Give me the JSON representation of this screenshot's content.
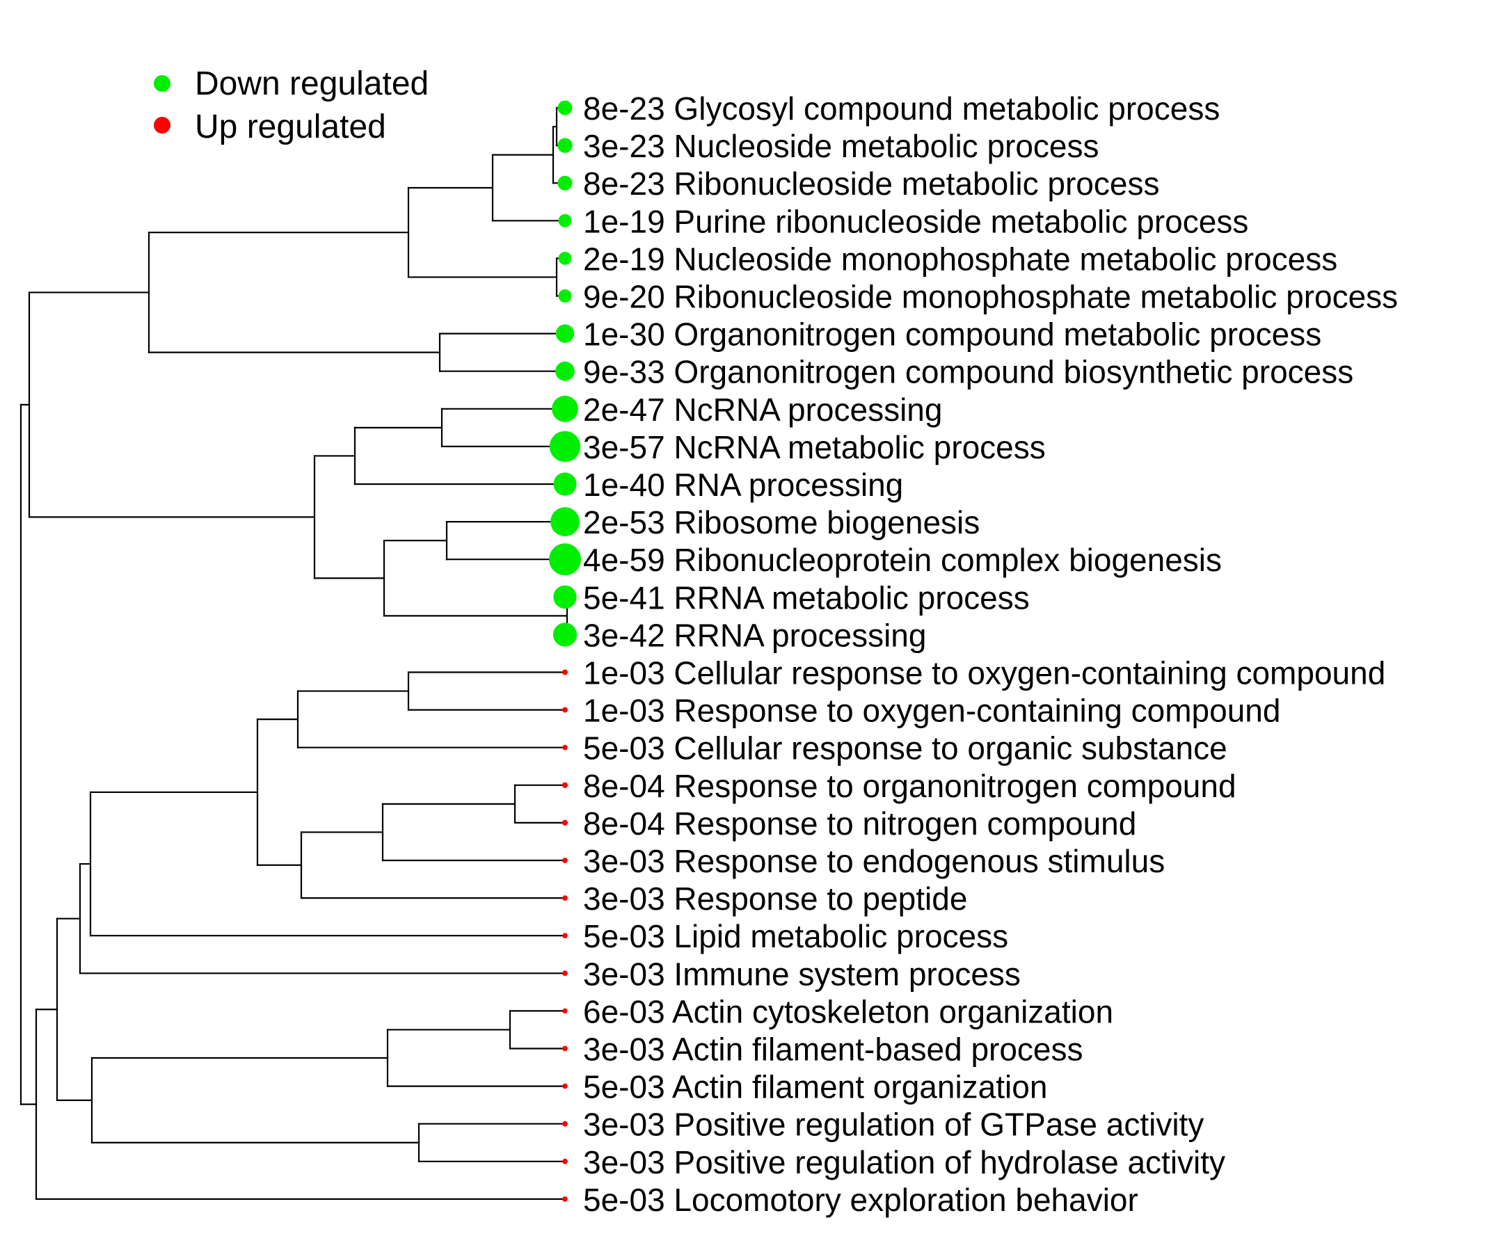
{
  "legend": {
    "entries": [
      {
        "label": "Down regulated",
        "color": "#00ee00"
      },
      {
        "label": "Up regulated",
        "color": "#ff0000"
      }
    ]
  },
  "line_color": "#000000",
  "leaves": [
    {
      "pvalue": "8e-23",
      "term": "Glycosyl compound metabolic process",
      "direction": "down",
      "neglog10p": 22.1
    },
    {
      "pvalue": "3e-23",
      "term": "Nucleoside metabolic process",
      "direction": "down",
      "neglog10p": 22.5
    },
    {
      "pvalue": "8e-23",
      "term": "Ribonucleoside metabolic process",
      "direction": "down",
      "neglog10p": 22.1
    },
    {
      "pvalue": "1e-19",
      "term": "Purine ribonucleoside metabolic process",
      "direction": "down",
      "neglog10p": 19.0
    },
    {
      "pvalue": "2e-19",
      "term": "Nucleoside monophosphate metabolic process",
      "direction": "down",
      "neglog10p": 18.7
    },
    {
      "pvalue": "9e-20",
      "term": "Ribonucleoside monophosphate metabolic process",
      "direction": "down",
      "neglog10p": 19.0
    },
    {
      "pvalue": "1e-30",
      "term": "Organonitrogen compound metabolic process",
      "direction": "down",
      "neglog10p": 30.0
    },
    {
      "pvalue": "9e-33",
      "term": "Organonitrogen compound biosynthetic process",
      "direction": "down",
      "neglog10p": 32.0
    },
    {
      "pvalue": "2e-47",
      "term": "NcRNA processing",
      "direction": "down",
      "neglog10p": 46.7
    },
    {
      "pvalue": "3e-57",
      "term": "NcRNA metabolic process",
      "direction": "down",
      "neglog10p": 56.5
    },
    {
      "pvalue": "1e-40",
      "term": "RNA processing",
      "direction": "down",
      "neglog10p": 40.0
    },
    {
      "pvalue": "2e-53",
      "term": "Ribosome biogenesis",
      "direction": "down",
      "neglog10p": 52.7
    },
    {
      "pvalue": "4e-59",
      "term": "Ribonucleoprotein complex biogenesis",
      "direction": "down",
      "neglog10p": 58.4
    },
    {
      "pvalue": "5e-41",
      "term": "RRNA metabolic process",
      "direction": "down",
      "neglog10p": 40.3
    },
    {
      "pvalue": "3e-42",
      "term": "RRNA processing",
      "direction": "down",
      "neglog10p": 41.5
    },
    {
      "pvalue": "1e-03",
      "term": "Cellular response to oxygen-containing compound",
      "direction": "up",
      "neglog10p": 3.0
    },
    {
      "pvalue": "1e-03",
      "term": "Response to oxygen-containing compound",
      "direction": "up",
      "neglog10p": 3.0
    },
    {
      "pvalue": "5e-03",
      "term": "Cellular response to organic substance",
      "direction": "up",
      "neglog10p": 2.3
    },
    {
      "pvalue": "8e-04",
      "term": "Response to organonitrogen compound",
      "direction": "up",
      "neglog10p": 3.1
    },
    {
      "pvalue": "8e-04",
      "term": "Response to nitrogen compound",
      "direction": "up",
      "neglog10p": 3.1
    },
    {
      "pvalue": "3e-03",
      "term": "Response to endogenous stimulus",
      "direction": "up",
      "neglog10p": 2.5
    },
    {
      "pvalue": "3e-03",
      "term": "Response to peptide",
      "direction": "up",
      "neglog10p": 2.5
    },
    {
      "pvalue": "5e-03",
      "term": "Lipid metabolic process",
      "direction": "up",
      "neglog10p": 2.3
    },
    {
      "pvalue": "3e-03",
      "term": "Immune system process",
      "direction": "up",
      "neglog10p": 2.5
    },
    {
      "pvalue": "6e-03",
      "term": "Actin cytoskeleton organization",
      "direction": "up",
      "neglog10p": 2.2
    },
    {
      "pvalue": "3e-03",
      "term": "Actin filament-based process",
      "direction": "up",
      "neglog10p": 2.5
    },
    {
      "pvalue": "5e-03",
      "term": "Actin filament organization",
      "direction": "up",
      "neglog10p": 2.3
    },
    {
      "pvalue": "3e-03",
      "term": "Positive regulation of GTPase activity",
      "direction": "up",
      "neglog10p": 2.5
    },
    {
      "pvalue": "3e-03",
      "term": "Positive regulation of hydrolase activity",
      "direction": "up",
      "neglog10p": 2.5
    },
    {
      "pvalue": "5e-03",
      "term": "Locomotory exploration behavior",
      "direction": "up",
      "neglog10p": 2.3
    }
  ]
}
